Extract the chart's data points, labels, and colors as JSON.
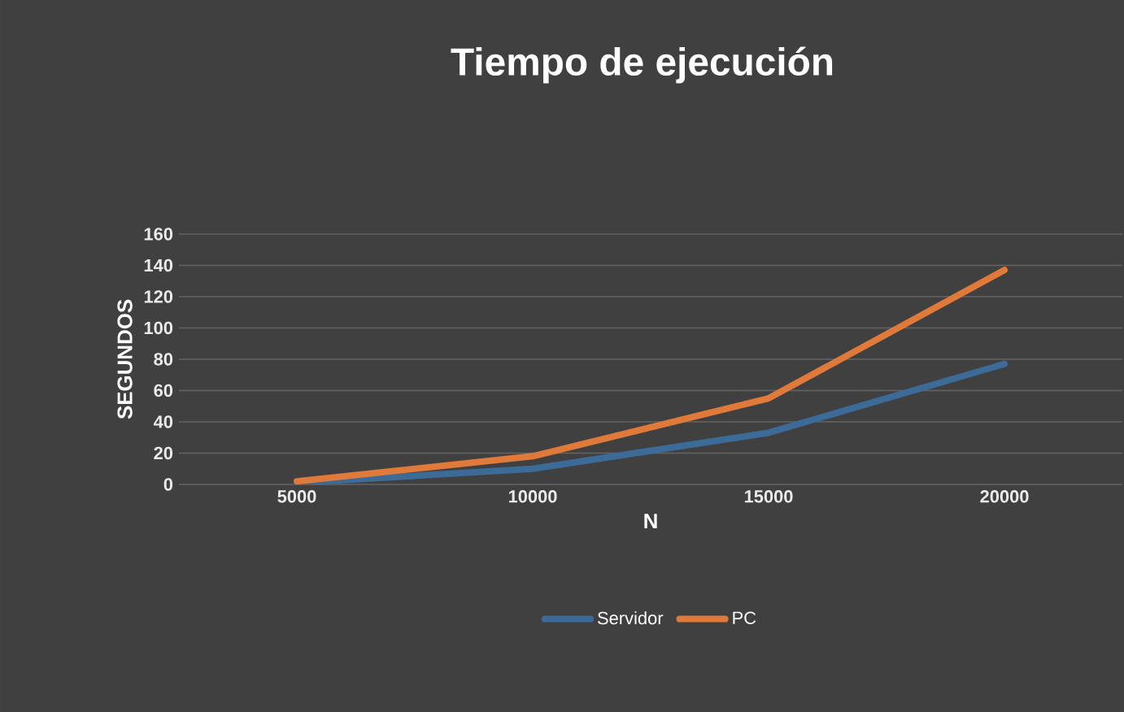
{
  "chart_data": {
    "type": "line",
    "title": "Tiempo de ejecución",
    "xlabel": "N",
    "ylabel": "SEGUNDOS",
    "categories": [
      "5000",
      "10000",
      "15000",
      "20000"
    ],
    "series": [
      {
        "name": "Servidor",
        "color": "#3c6b98",
        "values": [
          1,
          10,
          33,
          77
        ]
      },
      {
        "name": "PC",
        "color": "#e07a3a",
        "values": [
          2,
          18,
          55,
          137
        ]
      }
    ],
    "ylim": [
      0,
      160
    ],
    "yticks": [
      0,
      20,
      40,
      60,
      80,
      100,
      120,
      140,
      160
    ],
    "grid": "y",
    "legend": "bottom",
    "line_style": "solid"
  }
}
